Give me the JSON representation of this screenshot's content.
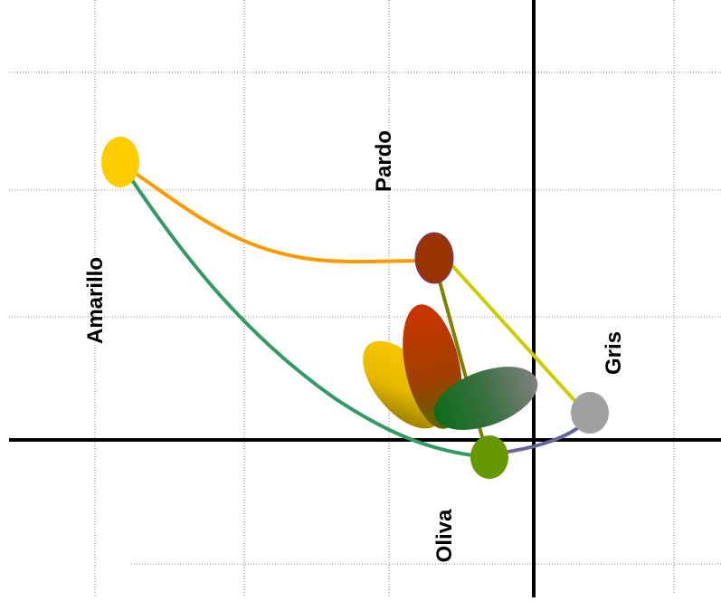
{
  "labels": {
    "amarillo": "Amarillo",
    "pardo": "Pardo",
    "gris": "Gris",
    "oliva": "Oliva"
  },
  "colors": {
    "amarillo": "#ffcc00",
    "pardo": "#993300",
    "gris": "#a0a0a0",
    "oliva": "#669900",
    "curve_amarillo_pardo": "#ff9900",
    "curve_amarillo_oliva": "#339966",
    "curve_pardo_gris": "#cccc00",
    "curve_pardo_oliva": "#808000",
    "curve_oliva_gris": "#666699"
  }
}
